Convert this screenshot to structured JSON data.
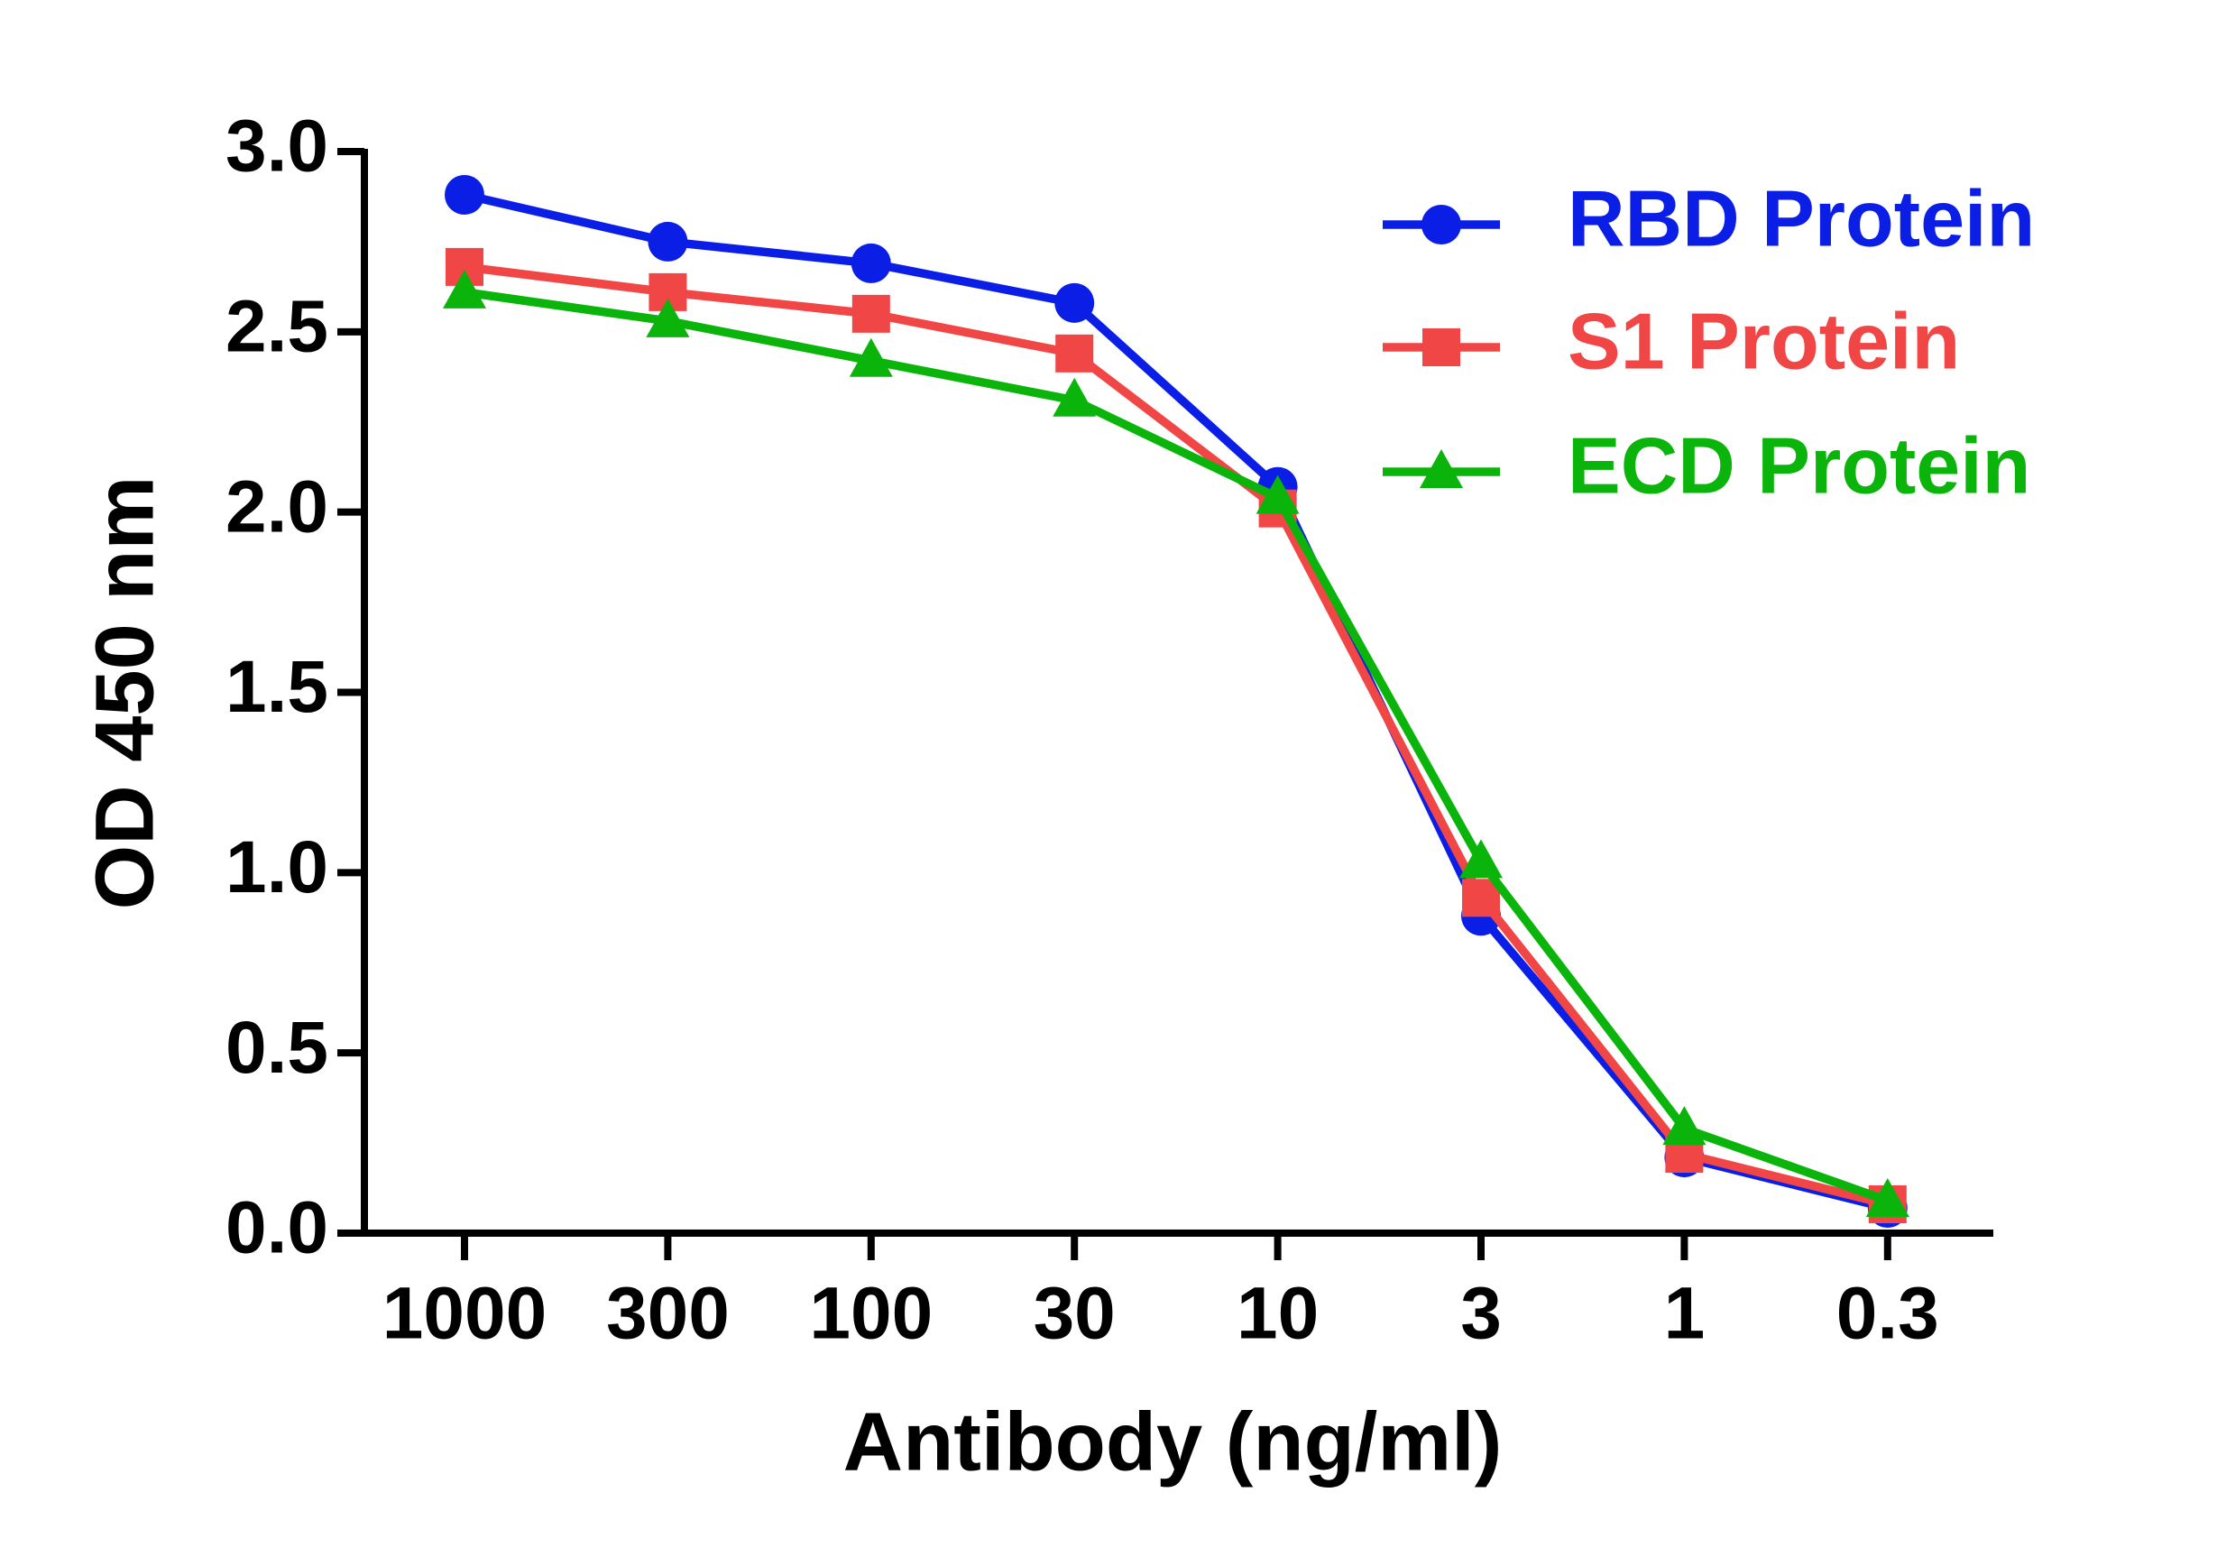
{
  "chart_data": {
    "type": "line",
    "x_label": "Antibody (ng/ml)",
    "y_label": "OD 450 nm",
    "categories": [
      "1000",
      "300",
      "100",
      "30",
      "10",
      "3",
      "1",
      "0.3"
    ],
    "series": [
      {
        "name": "RBD Protein",
        "color": "#0a1ee6",
        "marker": "circle",
        "values": [
          2.88,
          2.75,
          2.69,
          2.58,
          2.07,
          0.88,
          0.21,
          0.07
        ]
      },
      {
        "name": "S1 Protein",
        "color": "#f04646",
        "marker": "square",
        "values": [
          2.68,
          2.61,
          2.55,
          2.44,
          2.01,
          0.93,
          0.22,
          0.08
        ]
      },
      {
        "name": "ECD Protein",
        "color": "#0ab40a",
        "marker": "triangle",
        "values": [
          2.61,
          2.53,
          2.42,
          2.31,
          2.04,
          1.03,
          0.29,
          0.09
        ]
      }
    ],
    "ylim": [
      0,
      3
    ],
    "yticks": [
      {
        "value": 0,
        "label": "0.0"
      },
      0.5,
      {
        "value": 1,
        "label": "1.0"
      },
      1.5,
      {
        "value": 2,
        "label": "2.0"
      },
      2.5,
      {
        "value": 3,
        "label": "3.0"
      }
    ],
    "legend": "top-right"
  }
}
